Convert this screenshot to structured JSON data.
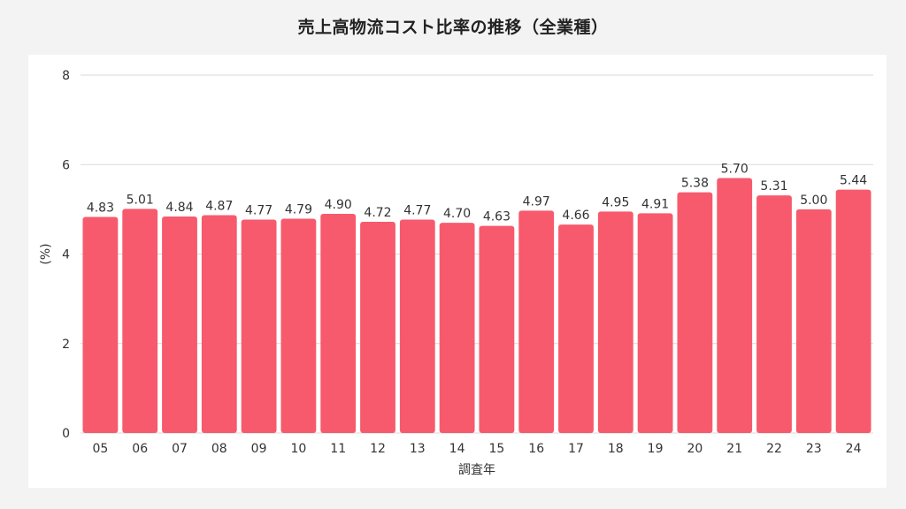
{
  "title": "売上高物流コスト比率の推移（全業種）",
  "colors": {
    "bar": "#f75a6c",
    "grid": "#d9d9d9",
    "text": "#333333"
  },
  "chart_data": {
    "type": "bar",
    "title": "売上高物流コスト比率の推移（全業種）",
    "xlabel": "調査年",
    "ylabel": "(%)",
    "ylim": [
      0,
      8
    ],
    "yticks": [
      0,
      2,
      4,
      6,
      8
    ],
    "grid": true,
    "legend": "none",
    "categories": [
      "05",
      "06",
      "07",
      "08",
      "09",
      "10",
      "11",
      "12",
      "13",
      "14",
      "15",
      "16",
      "17",
      "18",
      "19",
      "20",
      "21",
      "22",
      "23",
      "24"
    ],
    "values": [
      4.83,
      5.01,
      4.84,
      4.87,
      4.77,
      4.79,
      4.9,
      4.72,
      4.77,
      4.7,
      4.63,
      4.97,
      4.66,
      4.95,
      4.91,
      5.38,
      5.7,
      5.31,
      5.0,
      5.44
    ],
    "value_labels": [
      "4.83",
      "5.01",
      "4.84",
      "4.87",
      "4.77",
      "4.79",
      "4.90",
      "4.72",
      "4.77",
      "4.70",
      "4.63",
      "4.97",
      "4.66",
      "4.95",
      "4.91",
      "5.38",
      "5.70",
      "5.31",
      "5.00",
      "5.44"
    ]
  }
}
